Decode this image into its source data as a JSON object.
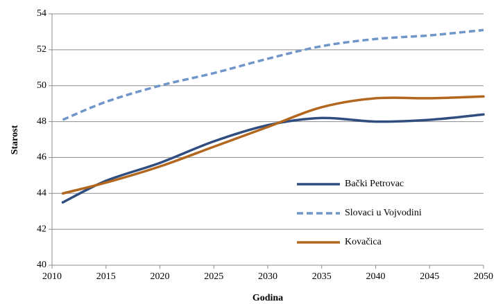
{
  "chart_data": {
    "type": "line",
    "x": [
      2011,
      2015,
      2020,
      2025,
      2030,
      2035,
      2040,
      2045,
      2050
    ],
    "series": [
      {
        "name": "Bački Petrovac",
        "color": "#2f4d7e",
        "dash": false,
        "values": [
          43.5,
          44.7,
          45.7,
          46.9,
          47.8,
          48.2,
          48.0,
          48.1,
          48.4
        ]
      },
      {
        "name": "Slovaci u Vojvodini",
        "color": "#6f95c9",
        "dash": true,
        "values": [
          48.1,
          49.1,
          50.0,
          50.7,
          51.5,
          52.2,
          52.6,
          52.8,
          53.1
        ]
      },
      {
        "name": "Kovačica",
        "color": "#b3661e",
        "dash": false,
        "values": [
          44.0,
          44.6,
          45.5,
          46.6,
          47.7,
          48.8,
          49.3,
          49.3,
          49.4
        ]
      }
    ],
    "xlabel": "Godina",
    "ylabel": "Starost",
    "xlim": [
      2010,
      2050
    ],
    "xticks": [
      2010,
      2015,
      2020,
      2025,
      2030,
      2035,
      2040,
      2045,
      2050
    ],
    "ylim": [
      40,
      54
    ],
    "yticks": [
      40,
      42,
      44,
      46,
      48,
      50,
      52,
      54
    ],
    "grid": true,
    "legend": "lower right"
  }
}
